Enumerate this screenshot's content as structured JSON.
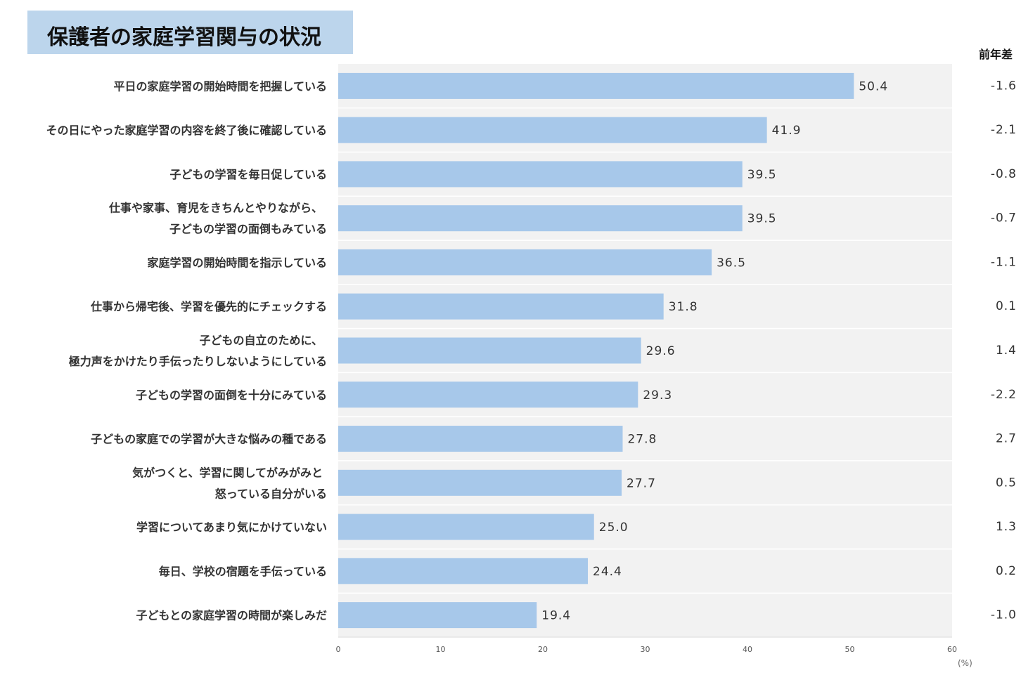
{
  "title": "保護者の家庭学習関与の状況",
  "diff_header": "前年差",
  "unit_label": "(%)",
  "colors": {
    "bar": "#a7c8ea",
    "plot_bg": "#f2f2f2",
    "title_bg": "#bcd5ec",
    "separator": "#ffffff"
  },
  "chart_data": {
    "type": "bar",
    "orientation": "horizontal",
    "title": "保護者の家庭学習関与の状況",
    "xlabel": "(%)",
    "ylabel": "",
    "xlim": [
      0,
      60
    ],
    "xticks": [
      0,
      10,
      20,
      30,
      40,
      50,
      60
    ],
    "grid": false,
    "categories": [
      [
        "平日の家庭学習の開始時間を把握している"
      ],
      [
        "その日にやった家庭学習の内容を終了後に確認している"
      ],
      [
        "子どもの学習を毎日促している"
      ],
      [
        "仕事や家事、育児をきちんとやりながら、",
        "子どもの学習の面倒もみている"
      ],
      [
        "家庭学習の開始時間を指示している"
      ],
      [
        "仕事から帰宅後、学習を優先的にチェックする"
      ],
      [
        "子どもの自立のために、",
        "極力声をかけたり手伝ったりしないようにしている"
      ],
      [
        "子どもの学習の面倒を十分にみている"
      ],
      [
        "子どもの家庭での学習が大きな悩みの種である"
      ],
      [
        "気がつくと、学習に関してがみがみと",
        "怒っている自分がいる"
      ],
      [
        "学習についてあまり気にかけていない"
      ],
      [
        "毎日、学校の宿題を手伝っている"
      ],
      [
        "子どもとの家庭学習の時間が楽しみだ"
      ]
    ],
    "values": [
      50.4,
      41.9,
      39.5,
      39.5,
      36.5,
      31.8,
      29.6,
      29.3,
      27.8,
      27.7,
      25.0,
      24.4,
      19.4
    ],
    "value_labels": [
      "50.4",
      "41.9",
      "39.5",
      "39.5",
      "36.5",
      "31.8",
      "29.6",
      "29.3",
      "27.8",
      "27.7",
      "25.0",
      "24.4",
      "19.4"
    ],
    "diff_header": "前年差",
    "diffs": [
      "-1.6",
      "-2.1",
      "-0.8",
      "-0.7",
      "-1.1",
      "0.1",
      "1.4",
      "-2.2",
      "2.7",
      "0.5",
      "1.3",
      "0.2",
      "-1.0"
    ]
  }
}
